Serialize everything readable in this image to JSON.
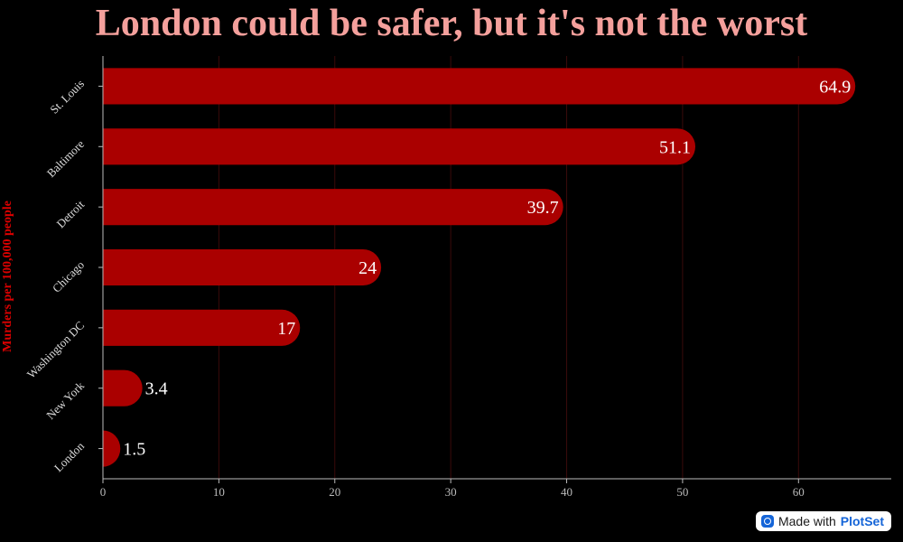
{
  "chart_data": {
    "type": "bar",
    "orientation": "horizontal",
    "title": "London could be safer, but it's not the worst",
    "ylabel": "Murders per 100,000 people",
    "xlabel": "",
    "categories": [
      "St. Louis",
      "Baltimore",
      "Detroit",
      "Chicago",
      "Washington DC",
      "New York",
      "London"
    ],
    "values": [
      64.9,
      51.1,
      39.7,
      24,
      17,
      3.4,
      1.5
    ],
    "xlim": [
      0,
      68
    ],
    "xticks": [
      0,
      10,
      20,
      30,
      40,
      50,
      60
    ],
    "grid": true,
    "legend": "none",
    "colors": {
      "bar": "#aa0000",
      "title": "#f4a09c",
      "ylabel": "#dd0000",
      "grid": "#3a0a0a",
      "axis": "#bbbbbb",
      "background": "#000000",
      "value_label": "#ffffff"
    }
  },
  "watermark": {
    "prefix": "Made with",
    "brand": "PlotSet",
    "icon": "plotset-logo-icon"
  }
}
